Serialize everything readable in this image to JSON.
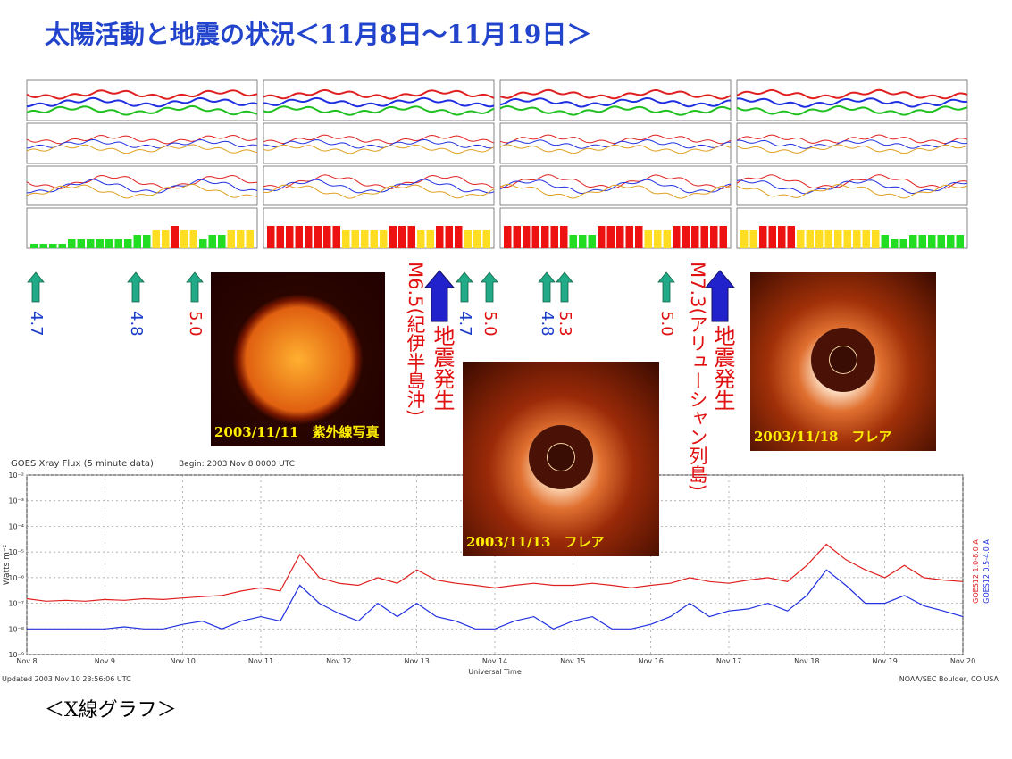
{
  "title": "太陽活動と地震の状況＜11月8日～11月19日＞",
  "chart_data": [
    {
      "type": "bar",
      "name": "Estimated Kp",
      "ylim": [
        0,
        9
      ],
      "colors": [
        "#22dd22",
        "#ffdd22",
        "#ee1111"
      ],
      "values": [
        1,
        1,
        1,
        1,
        2,
        2,
        2,
        2,
        2,
        2,
        2,
        3,
        3,
        4,
        4,
        5,
        4,
        4,
        2,
        3,
        3,
        4,
        4,
        4,
        5,
        5,
        5,
        5,
        5,
        5,
        5,
        5,
        4,
        4,
        4,
        4,
        4,
        5,
        5,
        5,
        4,
        4,
        5,
        5,
        5,
        4,
        4,
        4,
        5,
        5,
        5,
        5,
        5,
        5,
        5,
        3,
        3,
        3,
        5,
        5,
        5,
        5,
        5,
        4,
        4,
        4,
        5,
        5,
        5,
        5,
        5,
        5,
        4,
        4,
        5,
        5,
        5,
        5,
        4,
        4,
        4,
        4,
        4,
        4,
        4,
        4,
        4,
        3,
        2,
        2,
        3,
        3,
        3,
        3,
        3,
        3
      ]
    },
    {
      "type": "line",
      "title": "GOES Xray Flux (5 minute data)",
      "subtitle": "Begin: 2003 Nov 8 0000 UTC",
      "x_label": "Universal Time",
      "y_label": "Watts m⁻²",
      "log_scale": true,
      "grid": true,
      "x": [
        8,
        8.25,
        8.5,
        8.75,
        9,
        9.25,
        9.5,
        9.75,
        10,
        10.25,
        10.5,
        10.75,
        11,
        11.25,
        11.5,
        11.75,
        12,
        12.25,
        12.5,
        12.75,
        13,
        13.25,
        13.5,
        13.75,
        14,
        14.25,
        14.5,
        14.75,
        15,
        15.25,
        15.5,
        15.75,
        16,
        16.25,
        16.5,
        16.75,
        17,
        17.25,
        17.5,
        17.75,
        18,
        18.25,
        18.5,
        18.75,
        19,
        19.25,
        19.5,
        19.75,
        20
      ],
      "xlim": [
        8,
        20
      ],
      "xticks": [
        {
          "value": 8,
          "label": "Nov 8"
        },
        {
          "value": 9,
          "label": "Nov 9"
        },
        {
          "value": 10,
          "label": "Nov 10"
        },
        {
          "value": 11,
          "label": "Nov 11"
        },
        {
          "value": 12,
          "label": "Nov 12"
        },
        {
          "value": 13,
          "label": "Nov 13"
        },
        {
          "value": 14,
          "label": "Nov 14"
        },
        {
          "value": 15,
          "label": "Nov 15"
        },
        {
          "value": 16,
          "label": "Nov 16"
        },
        {
          "value": 17,
          "label": "Nov 17"
        },
        {
          "value": 18,
          "label": "Nov 18"
        },
        {
          "value": 19,
          "label": "Nov 19"
        },
        {
          "value": 20,
          "label": "Nov 20"
        }
      ],
      "ylim": [
        1e-09,
        0.01
      ],
      "yticks": [
        {
          "value": 1e-09,
          "label": "10⁻⁹"
        },
        {
          "value": 1e-08,
          "label": "10⁻⁸"
        },
        {
          "value": 1e-07,
          "label": "10⁻⁷"
        },
        {
          "value": 1e-06,
          "label": "10⁻⁶"
        },
        {
          "value": 1e-05,
          "label": "10⁻⁵"
        },
        {
          "value": 0.0001,
          "label": "10⁻⁴"
        },
        {
          "value": 0.001,
          "label": "10⁻³"
        },
        {
          "value": 0.01,
          "label": "10⁻²"
        }
      ],
      "series": [
        {
          "name": "GOES12 1.0-8.0 A",
          "color": "#e02020",
          "values": [
            1.5e-07,
            1.2e-07,
            1.3e-07,
            1.2e-07,
            1.4e-07,
            1.3e-07,
            1.5e-07,
            1.4e-07,
            1.6e-07,
            1.8e-07,
            2e-07,
            3e-07,
            4e-07,
            3e-07,
            8e-06,
            1e-06,
            6e-07,
            5e-07,
            1e-06,
            6e-07,
            2e-06,
            8e-07,
            6e-07,
            5e-07,
            4e-07,
            5e-07,
            6e-07,
            5e-07,
            5e-07,
            6e-07,
            5e-07,
            4e-07,
            5e-07,
            6e-07,
            1e-06,
            7e-07,
            6e-07,
            8e-07,
            1e-06,
            7e-07,
            3e-06,
            2e-05,
            5e-06,
            2e-06,
            1e-06,
            3e-06,
            1e-06,
            8e-07,
            7e-07
          ]
        },
        {
          "name": "GOES12 0.5-4.0 A",
          "color": "#2030e0",
          "values": [
            1e-08,
            1e-08,
            1e-08,
            1e-08,
            1e-08,
            1.2e-08,
            1e-08,
            1e-08,
            1.5e-08,
            2e-08,
            1e-08,
            2e-08,
            3e-08,
            2e-08,
            5e-07,
            1e-07,
            4e-08,
            2e-08,
            1e-07,
            3e-08,
            1e-07,
            3e-08,
            2e-08,
            1e-08,
            1e-08,
            2e-08,
            3e-08,
            1e-08,
            2e-08,
            3e-08,
            1e-08,
            1e-08,
            1.5e-08,
            3e-08,
            1e-07,
            3e-08,
            5e-08,
            6e-08,
            1e-07,
            5e-08,
            2e-07,
            2e-06,
            5e-07,
            1e-07,
            1e-07,
            2e-07,
            8e-08,
            5e-08,
            3e-08
          ]
        }
      ],
      "notes": [
        "Updated 2003 Nov 10 23:56:06 UTC",
        "NOAA/SEC Boulder, CO USA"
      ]
    }
  ],
  "markers": [
    {
      "label": "4.7",
      "color": "#1a3cc8"
    },
    {
      "label": "4.8",
      "color": "#1a3cc8"
    },
    {
      "label": "5.0",
      "color": "#e01010"
    },
    {
      "label": "4.7",
      "color": "#1a3cc8"
    },
    {
      "label": "5.0",
      "color": "#e01010"
    },
    {
      "label": "4.8",
      "color": "#1a3cc8"
    },
    {
      "label": "5.3",
      "color": "#e01010"
    },
    {
      "label": "5.0",
      "color": "#e01010"
    }
  ],
  "earthquakes": [
    {
      "magnitude": "M6.5(紀伊半島沖)",
      "event": "地震発生"
    },
    {
      "magnitude": "M7.3(アリューシャン列島)",
      "event": "地震発生"
    }
  ],
  "photos": [
    {
      "caption": "2003/11/11　紫外線写真"
    },
    {
      "caption": "2003/11/13　フレア"
    },
    {
      "caption": "2003/11/18　フレア"
    }
  ],
  "footer": "＜X線グラフ＞"
}
